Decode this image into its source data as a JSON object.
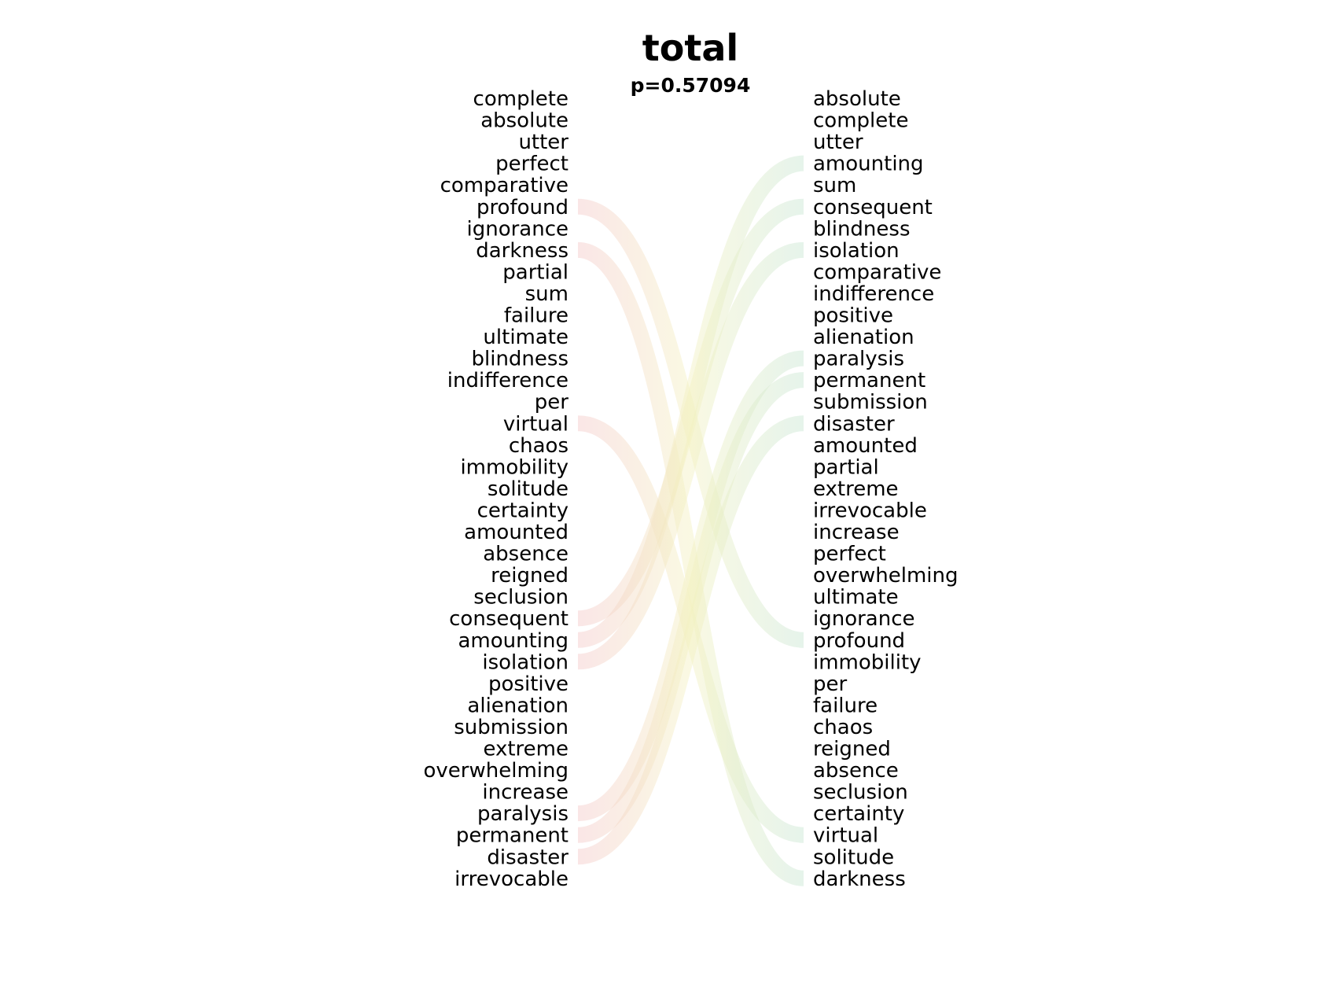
{
  "chart_data": {
    "type": "slope",
    "title": "total",
    "subtitle": "p=0.57094",
    "left_words": [
      "complete",
      "absolute",
      "utter",
      "perfect",
      "comparative",
      "profound",
      "ignorance",
      "darkness",
      "partial",
      "sum",
      "failure",
      "ultimate",
      "blindness",
      "indifference",
      "per",
      "virtual",
      "chaos",
      "immobility",
      "solitude",
      "certainty",
      "amounted",
      "absence",
      "reigned",
      "seclusion",
      "consequent",
      "amounting",
      "isolation",
      "positive",
      "alienation",
      "submission",
      "extreme",
      "overwhelming",
      "increase",
      "paralysis",
      "permanent",
      "disaster",
      "irrevocable"
    ],
    "right_words": [
      "absolute",
      "complete",
      "utter",
      "amounting",
      "sum",
      "consequent",
      "blindness",
      "isolation",
      "comparative",
      "indifference",
      "positive",
      "alienation",
      "paralysis",
      "permanent",
      "submission",
      "disaster",
      "amounted",
      "partial",
      "extreme",
      "irrevocable",
      "increase",
      "perfect",
      "overwhelming",
      "ultimate",
      "ignorance",
      "profound",
      "immobility",
      "per",
      "failure",
      "chaos",
      "reigned",
      "absence",
      "seclusion",
      "certainty",
      "virtual",
      "solitude",
      "darkness"
    ],
    "links": [
      {
        "word": "profound",
        "left_rank": 6,
        "right_rank": 26
      },
      {
        "word": "darkness",
        "left_rank": 8,
        "right_rank": 37
      },
      {
        "word": "virtual",
        "left_rank": 16,
        "right_rank": 35
      },
      {
        "word": "consequent",
        "left_rank": 25,
        "right_rank": 6
      },
      {
        "word": "amounting",
        "left_rank": 26,
        "right_rank": 4
      },
      {
        "word": "isolation",
        "left_rank": 27,
        "right_rank": 8
      },
      {
        "word": "paralysis",
        "left_rank": 34,
        "right_rank": 13
      },
      {
        "word": "permanent",
        "left_rank": 35,
        "right_rank": 14
      },
      {
        "word": "disaster",
        "left_rank": 36,
        "right_rank": 16
      }
    ],
    "colors": {
      "left_tint": "#f4c8c8",
      "right_tint": "#c8e6d2",
      "mid_tint": "#f3f1c0"
    }
  }
}
